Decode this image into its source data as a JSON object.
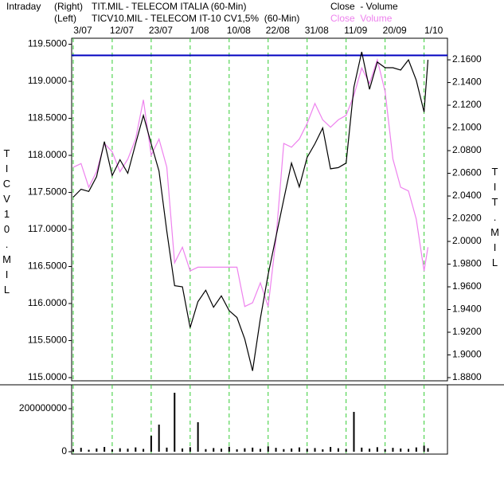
{
  "chart_data": {
    "type": "line",
    "header": {
      "mode": "Intraday",
      "right_tag": "(Right)",
      "left_tag": "(Left)",
      "right_fields": "Close  - Volume",
      "left_fields": "Close  Volume"
    },
    "left_axis_title": "TICV10.MIL",
    "right_axis_title": "TIT.MIL",
    "x": [
      0,
      2,
      4,
      6,
      8,
      10,
      12,
      14,
      16,
      18,
      20,
      22,
      24,
      26,
      28,
      30,
      32,
      34,
      36,
      38,
      40,
      42,
      44,
      46,
      48,
      50,
      52,
      54,
      56,
      58,
      60,
      62,
      64,
      66,
      68,
      70,
      72,
      74,
      76,
      78,
      80,
      82,
      84,
      86,
      88,
      90,
      91
    ],
    "xlim": [
      -0.4,
      96
    ],
    "xticks": [
      {
        "value": 0,
        "label": "3/07"
      },
      {
        "value": 10,
        "label": "12/07"
      },
      {
        "value": 20,
        "label": "23/07"
      },
      {
        "value": 30,
        "label": "1/08"
      },
      {
        "value": 40,
        "label": "10/08"
      },
      {
        "value": 50,
        "label": "22/08"
      },
      {
        "value": 60,
        "label": "31/08"
      },
      {
        "value": 70,
        "label": "11/09"
      },
      {
        "value": 80,
        "label": "20/09"
      },
      {
        "value": 90,
        "label": "1/10"
      }
    ],
    "ylim": [
      114.957,
      119.581
    ],
    "yticks": [
      {
        "value": 115,
        "label": "115.0000"
      },
      {
        "value": 115.5,
        "label": "115.5000"
      },
      {
        "value": 116,
        "label": "116.0000"
      },
      {
        "value": 116.5,
        "label": "116.5000"
      },
      {
        "value": 117,
        "label": "117.0000"
      },
      {
        "value": 117.5,
        "label": "117.5000"
      },
      {
        "value": 118,
        "label": "118.0000"
      },
      {
        "value": 118.5,
        "label": "118.5000"
      },
      {
        "value": 119,
        "label": "119.0000"
      },
      {
        "value": 119.5,
        "label": "119.5000"
      }
    ],
    "y2lim": [
      1.8772,
      2.179
    ],
    "y2ticks": [
      {
        "value": 1.88,
        "label": "1.8800"
      },
      {
        "value": 1.9,
        "label": "1.9000"
      },
      {
        "value": 1.92,
        "label": "1.9200"
      },
      {
        "value": 1.94,
        "label": "1.9400"
      },
      {
        "value": 1.96,
        "label": "1.9600"
      },
      {
        "value": 1.98,
        "label": "1.9800"
      },
      {
        "value": 2.0,
        "label": "2.0000"
      },
      {
        "value": 2.02,
        "label": "2.0200"
      },
      {
        "value": 2.04,
        "label": "2.0400"
      },
      {
        "value": 2.06,
        "label": "2.0600"
      },
      {
        "value": 2.08,
        "label": "2.0800"
      },
      {
        "value": 2.1,
        "label": "2.1000"
      },
      {
        "value": 2.12,
        "label": "2.1200"
      },
      {
        "value": 2.14,
        "label": "2.1400"
      },
      {
        "value": 2.16,
        "label": "2.1600"
      }
    ],
    "hline": {
      "value": 119.35,
      "color": "#0000c0"
    },
    "grid_color": "#33cc33",
    "series": [
      {
        "name": "TIT.MIL - TELECOM ITALIA (60-Min)",
        "color": "#000000",
        "axis": "y2",
        "values": [
          2.039,
          2.046,
          2.044,
          2.057,
          2.088,
          2.058,
          2.072,
          2.06,
          2.086,
          2.111,
          2.086,
          2.062,
          2.009,
          1.961,
          1.96,
          1.924,
          1.947,
          1.957,
          1.942,
          1.952,
          1.939,
          1.933,
          1.914,
          1.886,
          1.932,
          1.971,
          2.004,
          2.037,
          2.069,
          2.048,
          2.074,
          2.086,
          2.1,
          2.064,
          2.065,
          2.069,
          2.136,
          2.167,
          2.134,
          2.158,
          2.153,
          2.153,
          2.151,
          2.16,
          2.142,
          2.114,
          2.16
        ]
      },
      {
        "name": "TICV10.MIL - TELECOM IT-10 CV1,5%  (60-Min)",
        "color": "#ee82ee",
        "axis": "y",
        "values": [
          117.84,
          117.89,
          117.57,
          117.78,
          118.16,
          118.05,
          117.78,
          117.95,
          118.22,
          118.75,
          118.0,
          118.22,
          117.84,
          116.55,
          116.76,
          116.44,
          116.49,
          116.49,
          116.49,
          116.49,
          116.49,
          116.49,
          115.96,
          116.01,
          116.28,
          115.96,
          116.87,
          118.16,
          118.11,
          118.22,
          118.43,
          118.7,
          118.48,
          118.38,
          118.48,
          118.54,
          118.81,
          119.18,
          118.97,
          119.29,
          118.86,
          117.95,
          117.57,
          117.52,
          117.14,
          116.44,
          116.76
        ]
      }
    ],
    "volume": {
      "color": "#000000",
      "ylim": [
        0,
        311000000
      ],
      "yticks": [
        0,
        200000000
      ],
      "values": [
        12000000,
        18000000,
        9000000,
        15000000,
        22000000,
        11000000,
        16000000,
        14000000,
        20000000,
        13000000,
        74000000,
        126000000,
        19000000,
        274000000,
        15000000,
        21000000,
        137000000,
        12000000,
        17000000,
        14000000,
        23000000,
        11000000,
        16000000,
        19000000,
        13000000,
        25000000,
        18000000,
        12000000,
        15000000,
        20000000,
        14000000,
        17000000,
        11000000,
        22000000,
        16000000,
        13000000,
        185000000,
        19000000,
        14000000,
        21000000,
        12000000,
        18000000,
        15000000,
        13000000,
        20000000,
        28000000,
        16000000
      ]
    }
  }
}
